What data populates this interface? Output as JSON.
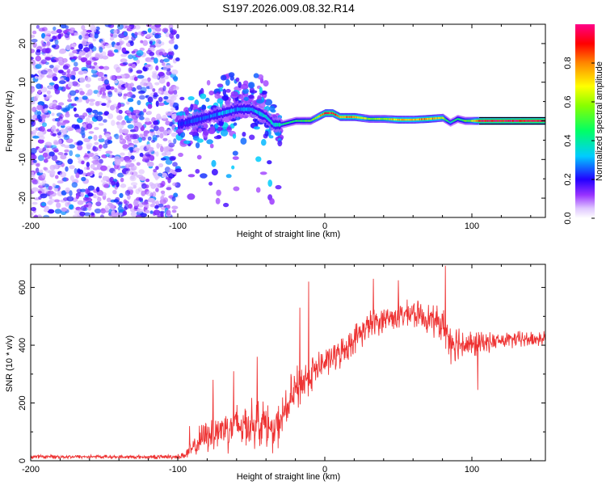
{
  "chart_data": [
    {
      "type": "heatmap",
      "title": "S197.2026.009.08.32.R14",
      "xlabel": "Height of straight line (km)",
      "ylabel": "Frequency (Hz)",
      "xlim": [
        -200,
        150
      ],
      "ylim": [
        -25,
        25
      ],
      "x_ticks": [
        -200,
        -100,
        0,
        100
      ],
      "y_ticks": [
        -20,
        -10,
        0,
        10,
        20
      ],
      "colorbar": {
        "label": "Normalized spectral amplitude",
        "range": [
          0,
          1
        ],
        "ticks": [
          0.0,
          0.2,
          0.4,
          0.6,
          0.8
        ],
        "tick_labels": [
          "0.0",
          "0.2",
          "0.4",
          "0.6",
          "0.8"
        ]
      },
      "ridge": {
        "x": [
          -100,
          -90,
          -80,
          -70,
          -60,
          -50,
          -40,
          -35,
          -30,
          -20,
          -10,
          0,
          5,
          10,
          20,
          30,
          40,
          50,
          60,
          70,
          80,
          85,
          90,
          95,
          100,
          105,
          150
        ],
        "frequency": [
          -1,
          0,
          1,
          2,
          3,
          3,
          1,
          -1,
          -1,
          0,
          0,
          2,
          2,
          1,
          1,
          0.5,
          0.5,
          0.3,
          0.3,
          0.5,
          0.8,
          -0.5,
          0.5,
          0,
          0,
          0,
          0
        ],
        "amplitude": [
          0.2,
          0.25,
          0.25,
          0.3,
          0.3,
          0.3,
          0.35,
          0.35,
          0.4,
          0.45,
          0.5,
          0.9,
          0.9,
          0.8,
          0.8,
          0.55,
          0.6,
          0.75,
          0.7,
          0.8,
          0.65,
          0.35,
          0.45,
          0.5,
          0.6,
          0.95,
          1.0
        ]
      },
      "noise_region": {
        "x_range": [
          -200,
          -100
        ],
        "freq_range": [
          -25,
          25
        ],
        "amplitude_range": [
          0.05,
          0.3
        ]
      },
      "scatter_region": {
        "x_range": [
          -100,
          -30
        ],
        "freq_range": [
          -25,
          12
        ],
        "amplitude_range": [
          0.1,
          0.35
        ]
      }
    },
    {
      "type": "line",
      "title": "",
      "xlabel": "Height of straight line (km)",
      "ylabel": "SNR (10 * v/v)",
      "xlim": [
        -200,
        150
      ],
      "ylim": [
        0,
        680
      ],
      "x_ticks": [
        -200,
        -100,
        0,
        100
      ],
      "y_ticks": [
        0,
        200,
        400,
        600
      ],
      "series": [
        {
          "name": "SNR",
          "color": "#ee3333",
          "x": [
            -200,
            -180,
            -160,
            -140,
            -120,
            -100,
            -95,
            -90,
            -85,
            -80,
            -70,
            -60,
            -50,
            -40,
            -35,
            -30,
            -20,
            -10,
            0,
            10,
            20,
            30,
            40,
            50,
            60,
            70,
            80,
            85,
            90,
            100,
            110,
            120,
            130,
            140,
            150
          ],
          "mean": [
            14,
            14,
            14,
            13,
            13,
            14,
            20,
            40,
            70,
            90,
            110,
            120,
            130,
            130,
            90,
            140,
            240,
            300,
            340,
            370,
            420,
            470,
            490,
            500,
            510,
            495,
            470,
            420,
            410,
            400,
            410,
            415,
            420,
            420,
            425
          ],
          "spread": [
            8,
            8,
            8,
            8,
            8,
            10,
            20,
            40,
            60,
            70,
            90,
            100,
            100,
            100,
            80,
            90,
            100,
            80,
            60,
            60,
            60,
            60,
            55,
            55,
            55,
            60,
            70,
            90,
            80,
            60,
            40,
            35,
            35,
            35,
            35
          ],
          "peaks": [
            {
              "x": -92,
              "y": 120
            },
            {
              "x": -76,
              "y": 280
            },
            {
              "x": -62,
              "y": 310
            },
            {
              "x": -46,
              "y": 360
            },
            {
              "x": -17,
              "y": 530
            },
            {
              "x": -11,
              "y": 620
            },
            {
              "x": 33,
              "y": 630
            },
            {
              "x": 50,
              "y": 625
            },
            {
              "x": 82,
              "y": 675
            },
            {
              "x": 104,
              "y": 245
            }
          ]
        }
      ]
    }
  ]
}
